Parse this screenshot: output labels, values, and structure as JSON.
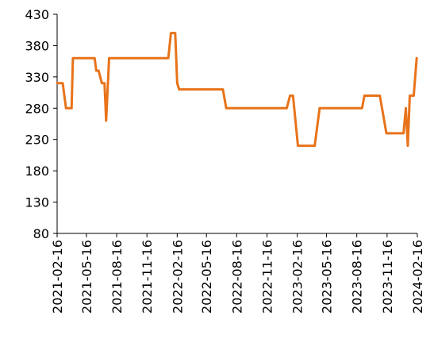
{
  "chart_data": {
    "type": "line",
    "title": "",
    "xlabel": "",
    "ylabel": "",
    "x_range": [
      "2021-02-16",
      "2024-02-16"
    ],
    "x_ticks": [
      "2021-02-16",
      "2021-05-16",
      "2021-08-16",
      "2021-11-16",
      "2022-02-16",
      "2022-05-16",
      "2022-08-16",
      "2022-11-16",
      "2023-02-16",
      "2023-05-16",
      "2023-08-16",
      "2023-11-16",
      "2024-02-16"
    ],
    "ylim": [
      80,
      430
    ],
    "y_ticks": [
      80,
      130,
      180,
      230,
      280,
      330,
      380,
      430
    ],
    "grid": false,
    "legend": "none",
    "colors": {
      "line": "#E8731A",
      "axis": "#000000"
    },
    "series": [
      {
        "points": [
          [
            "2021-02-16",
            320
          ],
          [
            "2021-03-05",
            320
          ],
          [
            "2021-03-15",
            280
          ],
          [
            "2021-04-01",
            280
          ],
          [
            "2021-04-05",
            360
          ],
          [
            "2021-06-10",
            360
          ],
          [
            "2021-06-15",
            340
          ],
          [
            "2021-06-22",
            340
          ],
          [
            "2021-07-02",
            320
          ],
          [
            "2021-07-10",
            320
          ],
          [
            "2021-07-15",
            260
          ],
          [
            "2021-07-24",
            360
          ],
          [
            "2022-01-20",
            360
          ],
          [
            "2022-01-28",
            400
          ],
          [
            "2022-02-10",
            400
          ],
          [
            "2022-02-16",
            320
          ],
          [
            "2022-02-22",
            310
          ],
          [
            "2022-07-05",
            310
          ],
          [
            "2022-07-15",
            280
          ],
          [
            "2023-01-15",
            280
          ],
          [
            "2023-01-25",
            300
          ],
          [
            "2023-02-03",
            300
          ],
          [
            "2023-02-18",
            220
          ],
          [
            "2023-04-10",
            220
          ],
          [
            "2023-04-25",
            280
          ],
          [
            "2023-09-01",
            280
          ],
          [
            "2023-09-08",
            300
          ],
          [
            "2023-10-25",
            300
          ],
          [
            "2023-11-14",
            240
          ],
          [
            "2024-01-05",
            240
          ],
          [
            "2024-01-12",
            280
          ],
          [
            "2024-01-18",
            220
          ],
          [
            "2024-01-24",
            300
          ],
          [
            "2024-02-05",
            300
          ],
          [
            "2024-02-14",
            360
          ]
        ]
      }
    ]
  }
}
